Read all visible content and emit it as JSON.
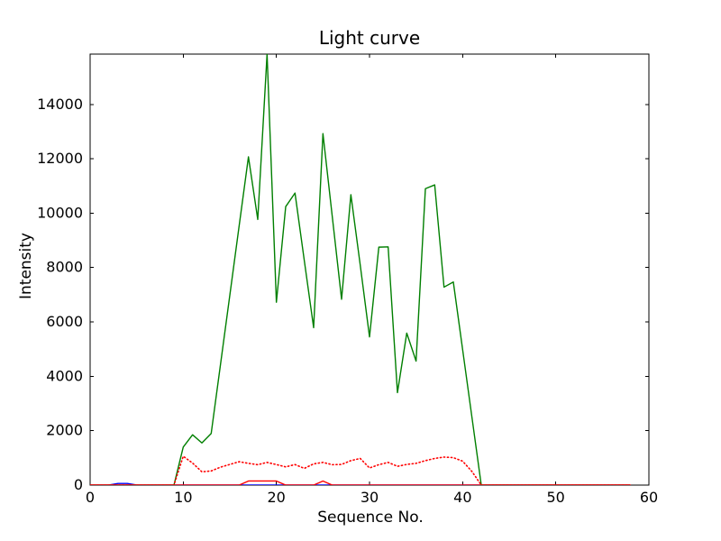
{
  "figure": {
    "title": "Light curve",
    "xlabel": "Sequence No.",
    "ylabel": "Intensity"
  },
  "chart_data": {
    "type": "line",
    "title": "Light curve",
    "xlabel": "Sequence No.",
    "ylabel": "Intensity",
    "xlim": [
      0,
      60
    ],
    "ylim": [
      0,
      15850
    ],
    "xticks": [
      0,
      10,
      20,
      30,
      40,
      50,
      60
    ],
    "yticks": [
      0,
      2000,
      4000,
      6000,
      8000,
      10000,
      12000,
      14000
    ],
    "grid": false,
    "legend": null,
    "frame_color": "#000000",
    "x": [
      0,
      1,
      2,
      3,
      4,
      5,
      6,
      7,
      8,
      9,
      10,
      11,
      12,
      13,
      14,
      15,
      16,
      17,
      18,
      19,
      20,
      21,
      22,
      23,
      24,
      25,
      26,
      27,
      28,
      29,
      30,
      31,
      32,
      33,
      34,
      35,
      36,
      37,
      38,
      39,
      40,
      41,
      42,
      43,
      44,
      45,
      46,
      47,
      48,
      49,
      50,
      51,
      52,
      53,
      54,
      55,
      56,
      57,
      58
    ],
    "series": [
      {
        "name": "blue-series",
        "color": "#0000ff",
        "style": "solid",
        "values": [
          0,
          0,
          0,
          60,
          60,
          0,
          0,
          0,
          0,
          0,
          0,
          0,
          0,
          0,
          0,
          0,
          0,
          0,
          0,
          0,
          0,
          0,
          0,
          0,
          0,
          0,
          0,
          0,
          0,
          0,
          0,
          0,
          0,
          0,
          0,
          0,
          0,
          0,
          0,
          0,
          0,
          0,
          0,
          0,
          0,
          0,
          0,
          0,
          0,
          0,
          0,
          0,
          0,
          0,
          0,
          0,
          0,
          0,
          0
        ]
      },
      {
        "name": "green-series",
        "color": "#007f00",
        "style": "solid",
        "values": [
          0,
          0,
          0,
          0,
          0,
          0,
          0,
          0,
          0,
          0,
          1400,
          1850,
          1550,
          1900,
          4440,
          6980,
          9530,
          12070,
          9770,
          15850,
          6725,
          10240,
          10740,
          8250,
          5790,
          12925,
          9880,
          6835,
          10680,
          8100,
          5450,
          8750,
          8760,
          3400,
          5590,
          4560,
          10900,
          11040,
          7280,
          7470,
          4980,
          2490,
          0,
          0,
          0,
          0,
          0,
          0,
          0,
          0,
          0,
          0,
          0,
          0,
          0,
          0,
          0,
          0,
          0
        ]
      },
      {
        "name": "red-dotted-series",
        "color": "#ff0000",
        "style": "dotted",
        "values": [
          0,
          0,
          0,
          0,
          0,
          0,
          0,
          0,
          0,
          0,
          1060,
          810,
          490,
          520,
          660,
          760,
          860,
          800,
          750,
          835,
          755,
          670,
          755,
          615,
          780,
          835,
          750,
          760,
          900,
          980,
          630,
          750,
          835,
          690,
          760,
          800,
          900,
          980,
          1030,
          1010,
          880,
          500,
          0,
          0,
          0,
          0,
          0,
          0,
          0,
          0,
          0,
          0,
          0,
          0,
          0,
          0,
          0,
          0,
          0
        ]
      },
      {
        "name": "red-solid-series",
        "color": "#ff0000",
        "style": "solid",
        "values": [
          0,
          0,
          0,
          0,
          0,
          0,
          0,
          0,
          0,
          0,
          0,
          0,
          0,
          0,
          0,
          0,
          0,
          150,
          150,
          150,
          150,
          0,
          0,
          0,
          0,
          150,
          0,
          0,
          0,
          0,
          0,
          0,
          0,
          0,
          0,
          0,
          0,
          0,
          0,
          0,
          0,
          0,
          0,
          0,
          0,
          0,
          0,
          0,
          0,
          0,
          0,
          0,
          0,
          0,
          0,
          0,
          0,
          0,
          0
        ]
      }
    ]
  }
}
